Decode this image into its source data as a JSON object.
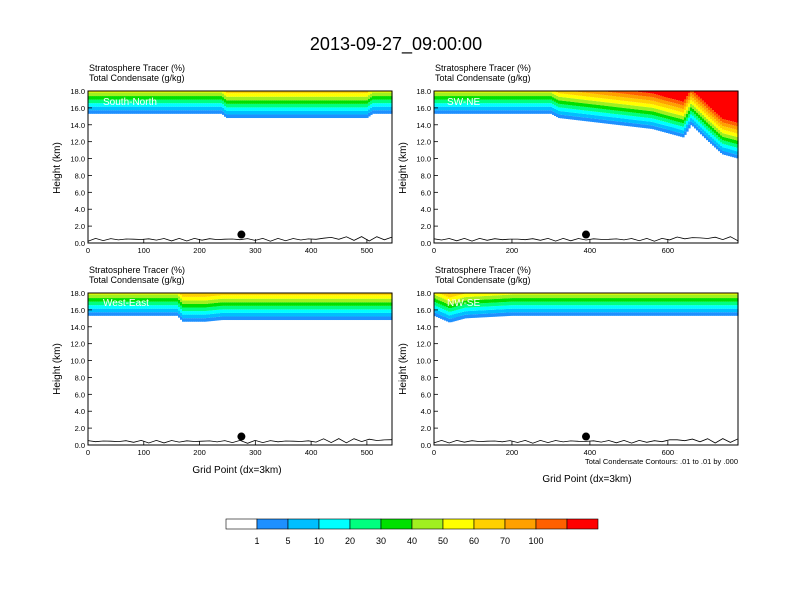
{
  "title": "2013-09-27_09:00:00",
  "field_labels": [
    "Stratosphere Tracer   (%)",
    "Total Condensate   (g/kg)"
  ],
  "y_axis_label": "Height (km)",
  "x_axis_label": "Grid Point (dx=3km)",
  "contour_note": "Total Condensate Contours: .01 to .01 by .000",
  "colors": {
    "levels": [
      "#ffffff",
      "#1e90ff",
      "#00bfff",
      "#00ffff",
      "#00ff7f",
      "#00e000",
      "#a0f020",
      "#ffff00",
      "#ffd000",
      "#ffa000",
      "#ff6000",
      "#ff0000"
    ],
    "line": "#000000"
  },
  "colorbar": {
    "labels": [
      "1",
      "5",
      "10",
      "20",
      "30",
      "40",
      "50",
      "60",
      "70",
      "100"
    ]
  },
  "chart_data": [
    {
      "type": "heatmap",
      "panel_label": "South-North",
      "ylim": [
        0,
        18
      ],
      "xlim": [
        0,
        545
      ],
      "x_ticks": [
        0,
        100,
        200,
        300,
        400,
        500
      ],
      "y_ticks": [
        "0.0",
        "2.0",
        "4.0",
        "6.0",
        "8.0",
        "10.0",
        "12.0",
        "14.0",
        "16.0",
        "18.0"
      ],
      "tropopause_profile": [
        [
          0,
          15.3
        ],
        [
          240,
          15.3
        ],
        [
          248,
          14.8
        ],
        [
          500,
          14.8
        ],
        [
          510,
          15.3
        ],
        [
          545,
          15.3
        ]
      ],
      "dot": [
        275,
        1.0
      ]
    },
    {
      "type": "heatmap",
      "panel_label": "SW-NE",
      "ylim": [
        0,
        18
      ],
      "xlim": [
        0,
        780
      ],
      "x_ticks": [
        0,
        200,
        400,
        600
      ],
      "y_ticks": [
        "0.0",
        "2.0",
        "4.0",
        "6.0",
        "8.0",
        "10.0",
        "12.0",
        "14.0",
        "16.0",
        "18.0"
      ],
      "tropopause_profile": [
        [
          0,
          15.3
        ],
        [
          300,
          15.3
        ],
        [
          320,
          14.8
        ],
        [
          560,
          13.5
        ],
        [
          600,
          13.0
        ],
        [
          640,
          12.5
        ],
        [
          660,
          14.0
        ],
        [
          700,
          12.2
        ],
        [
          740,
          10.5
        ],
        [
          780,
          10.0
        ]
      ],
      "dot": [
        390,
        1.0
      ]
    },
    {
      "type": "heatmap",
      "panel_label": "West-East",
      "ylim": [
        0,
        18
      ],
      "xlim": [
        0,
        545
      ],
      "x_ticks": [
        0,
        100,
        200,
        300,
        400,
        500
      ],
      "y_ticks": [
        "0.0",
        "2.0",
        "4.0",
        "6.0",
        "8.0",
        "10.0",
        "12.0",
        "14.0",
        "16.0",
        "18.0"
      ],
      "tropopause_profile": [
        [
          0,
          15.3
        ],
        [
          160,
          15.3
        ],
        [
          170,
          14.6
        ],
        [
          210,
          14.6
        ],
        [
          240,
          14.8
        ],
        [
          545,
          14.8
        ]
      ],
      "dot": [
        275,
        1.0
      ]
    },
    {
      "type": "heatmap",
      "panel_label": "NW-SE",
      "ylim": [
        0,
        18
      ],
      "xlim": [
        0,
        780
      ],
      "x_ticks": [
        0,
        200,
        400,
        600
      ],
      "y_ticks": [
        "0.0",
        "2.0",
        "4.0",
        "6.0",
        "8.0",
        "10.0",
        "12.0",
        "14.0",
        "16.0",
        "18.0"
      ],
      "tropopause_profile": [
        [
          0,
          15.3
        ],
        [
          40,
          14.5
        ],
        [
          80,
          15.0
        ],
        [
          200,
          15.3
        ],
        [
          780,
          15.3
        ]
      ],
      "dot": [
        390,
        1.0
      ]
    }
  ]
}
